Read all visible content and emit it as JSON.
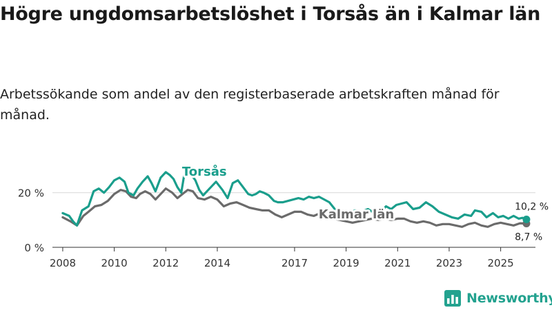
{
  "header": {
    "title": "Högre ungdomsarbetslöshet i Torsås än i Kalmar län",
    "subtitle": "Arbetssökande som andel av den registerbaserade arbetskraften månad för månad."
  },
  "brand": {
    "name": "Newsworthy"
  },
  "colors": {
    "torsas": "#1a9e8c",
    "kalmar": "#6b6b6b",
    "brand": "#23a28f",
    "grid": "#dddddd"
  },
  "chart_data": {
    "type": "line",
    "title": "Högre ungdomsarbetslöshet i Torsås än i Kalmar län",
    "xlabel": "",
    "ylabel": "",
    "xlim": [
      2007.6,
      2026.35
    ],
    "ylim": [
      0,
      30
    ],
    "x_ticks": [
      2008,
      2010,
      2012,
      2014,
      2017,
      2019,
      2021,
      2023,
      2025
    ],
    "y_ticks": [
      0,
      20
    ],
    "y_tick_labels": [
      "0 %",
      "20 %"
    ],
    "grid": true,
    "series": [
      {
        "name": "Torsås",
        "label": "Torsås",
        "end_label": "10,2 %",
        "end_value": 10.2,
        "points": [
          [
            2008.0,
            12.5
          ],
          [
            2008.25,
            11.5
          ],
          [
            2008.4,
            9.5
          ],
          [
            2008.55,
            8.0
          ],
          [
            2008.75,
            13.5
          ],
          [
            2009.0,
            15.0
          ],
          [
            2009.2,
            20.5
          ],
          [
            2009.4,
            21.5
          ],
          [
            2009.6,
            20.0
          ],
          [
            2009.8,
            22.0
          ],
          [
            2010.0,
            24.5
          ],
          [
            2010.2,
            25.5
          ],
          [
            2010.4,
            24.0
          ],
          [
            2010.55,
            20.0
          ],
          [
            2010.75,
            19.0
          ],
          [
            2010.9,
            21.5
          ],
          [
            2011.1,
            24.0
          ],
          [
            2011.3,
            26.0
          ],
          [
            2011.45,
            23.5
          ],
          [
            2011.6,
            20.5
          ],
          [
            2011.8,
            25.5
          ],
          [
            2012.0,
            27.5
          ],
          [
            2012.15,
            26.5
          ],
          [
            2012.3,
            25.0
          ],
          [
            2012.45,
            22.0
          ],
          [
            2012.6,
            20.0
          ],
          [
            2012.75,
            28.5
          ],
          [
            2012.85,
            29.0
          ],
          [
            2013.0,
            26.5
          ],
          [
            2013.15,
            24.5
          ],
          [
            2013.3,
            21.0
          ],
          [
            2013.45,
            19.0
          ],
          [
            2013.7,
            21.5
          ],
          [
            2013.95,
            24.0
          ],
          [
            2014.2,
            21.0
          ],
          [
            2014.4,
            18.0
          ],
          [
            2014.6,
            23.5
          ],
          [
            2014.8,
            24.5
          ],
          [
            2015.0,
            22.0
          ],
          [
            2015.2,
            19.5
          ],
          [
            2015.35,
            19.0
          ],
          [
            2015.5,
            19.5
          ],
          [
            2015.65,
            20.5
          ],
          [
            2015.8,
            20.0
          ],
          [
            2016.0,
            19.0
          ],
          [
            2016.2,
            17.0
          ],
          [
            2016.35,
            16.5
          ],
          [
            2016.55,
            16.5
          ],
          [
            2016.75,
            17.0
          ],
          [
            2016.95,
            17.5
          ],
          [
            2017.15,
            18.0
          ],
          [
            2017.35,
            17.5
          ],
          [
            2017.55,
            18.5
          ],
          [
            2017.75,
            18.0
          ],
          [
            2017.95,
            18.5
          ],
          [
            2018.15,
            17.5
          ],
          [
            2018.35,
            16.5
          ],
          [
            2018.6,
            13.5
          ],
          [
            2018.85,
            13.0
          ],
          [
            2019.1,
            12.5
          ],
          [
            2019.35,
            13.5
          ],
          [
            2019.6,
            13.0
          ],
          [
            2019.85,
            14.0
          ],
          [
            2020.1,
            12.5
          ],
          [
            2020.35,
            13.0
          ],
          [
            2020.55,
            15.0
          ],
          [
            2020.75,
            14.0
          ],
          [
            2020.95,
            15.5
          ],
          [
            2021.15,
            16.0
          ],
          [
            2021.35,
            16.5
          ],
          [
            2021.6,
            14.0
          ],
          [
            2021.85,
            14.5
          ],
          [
            2022.1,
            16.5
          ],
          [
            2022.35,
            15.0
          ],
          [
            2022.6,
            13.0
          ],
          [
            2022.85,
            12.0
          ],
          [
            2023.1,
            11.0
          ],
          [
            2023.35,
            10.5
          ],
          [
            2023.6,
            12.0
          ],
          [
            2023.85,
            11.5
          ],
          [
            2024.0,
            13.5
          ],
          [
            2024.25,
            13.0
          ],
          [
            2024.45,
            11.0
          ],
          [
            2024.7,
            12.5
          ],
          [
            2024.9,
            11.0
          ],
          [
            2025.1,
            11.5
          ],
          [
            2025.3,
            10.5
          ],
          [
            2025.5,
            11.5
          ],
          [
            2025.7,
            10.5
          ],
          [
            2025.85,
            10.8
          ],
          [
            2026.0,
            10.2
          ]
        ]
      },
      {
        "name": "Kalmar län",
        "label": "Kalmar län",
        "end_label": "8,7 %",
        "end_value": 8.7,
        "points": [
          [
            2008.0,
            11.0
          ],
          [
            2008.3,
            9.5
          ],
          [
            2008.55,
            8.0
          ],
          [
            2008.8,
            11.5
          ],
          [
            2009.0,
            13.0
          ],
          [
            2009.25,
            15.0
          ],
          [
            2009.5,
            15.5
          ],
          [
            2009.75,
            17.0
          ],
          [
            2010.0,
            19.5
          ],
          [
            2010.25,
            21.0
          ],
          [
            2010.45,
            20.5
          ],
          [
            2010.65,
            18.5
          ],
          [
            2010.85,
            18.0
          ],
          [
            2011.0,
            19.5
          ],
          [
            2011.2,
            20.5
          ],
          [
            2011.4,
            19.5
          ],
          [
            2011.6,
            17.5
          ],
          [
            2011.85,
            20.0
          ],
          [
            2012.0,
            21.5
          ],
          [
            2012.25,
            20.0
          ],
          [
            2012.45,
            18.0
          ],
          [
            2012.65,
            19.5
          ],
          [
            2012.85,
            21.0
          ],
          [
            2013.05,
            20.5
          ],
          [
            2013.25,
            18.0
          ],
          [
            2013.5,
            17.5
          ],
          [
            2013.75,
            18.5
          ],
          [
            2014.0,
            17.5
          ],
          [
            2014.25,
            15.0
          ],
          [
            2014.5,
            16.0
          ],
          [
            2014.75,
            16.5
          ],
          [
            2015.0,
            15.5
          ],
          [
            2015.25,
            14.5
          ],
          [
            2015.5,
            14.0
          ],
          [
            2015.75,
            13.5
          ],
          [
            2016.0,
            13.5
          ],
          [
            2016.25,
            12.0
          ],
          [
            2016.5,
            11.0
          ],
          [
            2016.75,
            12.0
          ],
          [
            2017.0,
            13.0
          ],
          [
            2017.25,
            13.0
          ],
          [
            2017.5,
            12.0
          ],
          [
            2017.75,
            11.5
          ],
          [
            2018.0,
            12.5
          ],
          [
            2018.25,
            11.5
          ],
          [
            2018.5,
            10.5
          ],
          [
            2018.75,
            10.0
          ],
          [
            2019.0,
            9.5
          ],
          [
            2019.25,
            9.0
          ],
          [
            2019.5,
            9.5
          ],
          [
            2019.75,
            10.0
          ],
          [
            2020.0,
            10.5
          ],
          [
            2020.25,
            10.0
          ],
          [
            2020.5,
            10.5
          ],
          [
            2020.75,
            10.0
          ],
          [
            2021.0,
            10.5
          ],
          [
            2021.25,
            10.5
          ],
          [
            2021.5,
            9.5
          ],
          [
            2021.75,
            9.0
          ],
          [
            2022.0,
            9.5
          ],
          [
            2022.25,
            9.0
          ],
          [
            2022.5,
            8.0
          ],
          [
            2022.75,
            8.5
          ],
          [
            2023.0,
            8.5
          ],
          [
            2023.25,
            8.0
          ],
          [
            2023.5,
            7.5
          ],
          [
            2023.75,
            8.5
          ],
          [
            2024.0,
            9.0
          ],
          [
            2024.25,
            8.0
          ],
          [
            2024.5,
            7.5
          ],
          [
            2024.75,
            8.5
          ],
          [
            2025.0,
            9.0
          ],
          [
            2025.25,
            8.5
          ],
          [
            2025.5,
            8.0
          ],
          [
            2025.75,
            8.8
          ],
          [
            2026.0,
            8.7
          ]
        ]
      }
    ]
  }
}
